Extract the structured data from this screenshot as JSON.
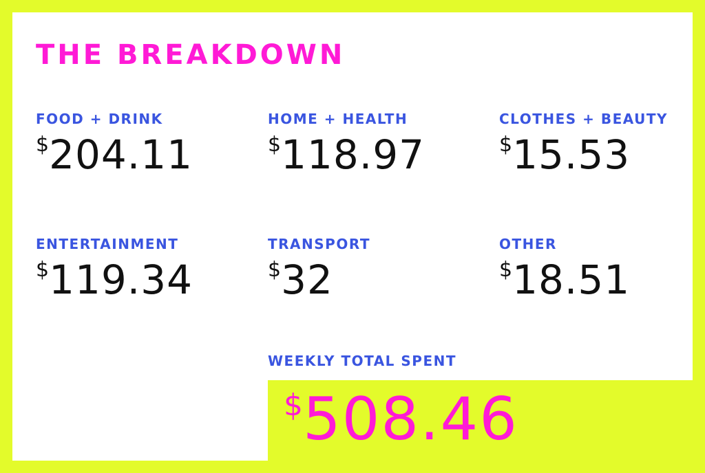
{
  "title": "THE BREAKDOWN",
  "currency_symbol": "$",
  "categories": [
    {
      "label": "FOOD + DRINK",
      "amount": "204.11"
    },
    {
      "label": "HOME + HEALTH",
      "amount": "118.97"
    },
    {
      "label": "CLOTHES + BEAUTY",
      "amount": "15.53"
    },
    {
      "label": "ENTERTAINMENT",
      "amount": "119.34"
    },
    {
      "label": "TRANSPORT",
      "amount": "32"
    },
    {
      "label": "OTHER",
      "amount": "18.51"
    }
  ],
  "total": {
    "label": "WEEKLY TOTAL SPENT",
    "amount": "508.46"
  },
  "colors": {
    "background": "#e3fb2b",
    "panel": "#ffffff",
    "title": "#ff1ad6",
    "label": "#3a55e0",
    "amount": "#111111",
    "total_amount": "#ff1ad6"
  }
}
